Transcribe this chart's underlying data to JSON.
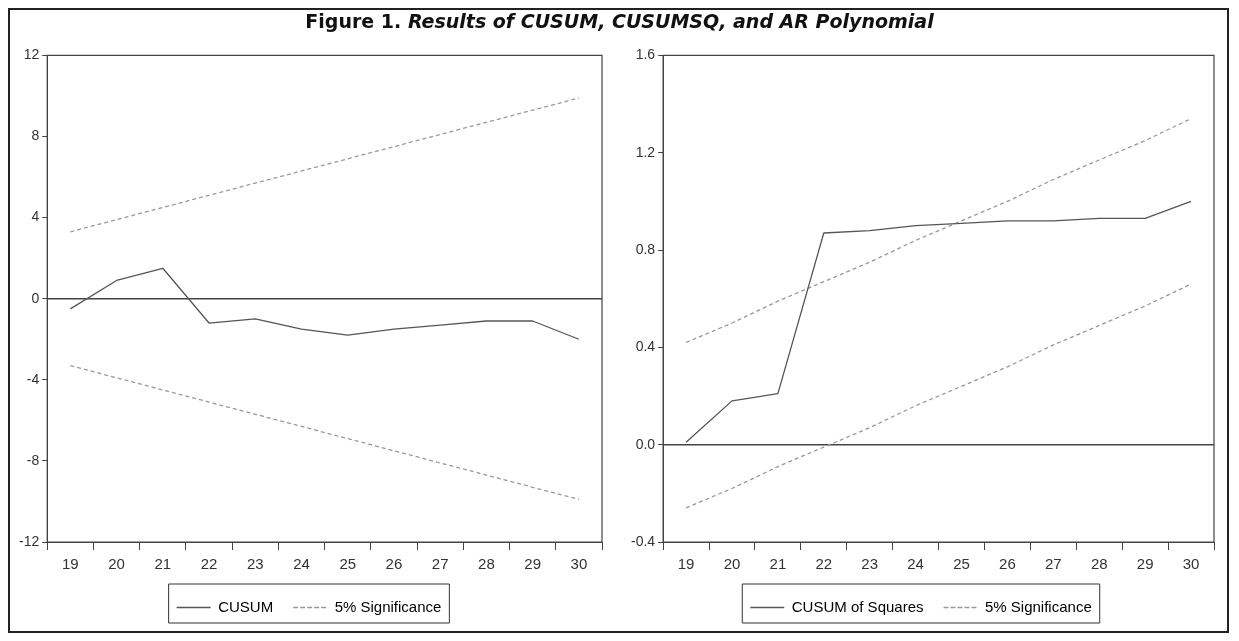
{
  "chart_data": [
    {
      "type": "line",
      "title": "Figure 1. Results of CUSUM, CUSUMSQ, and AR Polynomial",
      "categories": [
        "19",
        "20",
        "21",
        "22",
        "23",
        "24",
        "25",
        "26",
        "27",
        "28",
        "29",
        "30"
      ],
      "series": [
        {
          "name": "CUSUM",
          "color": "#555555",
          "values": [
            -0.5,
            0.9,
            1.5,
            -1.2,
            -1.0,
            -1.5,
            -1.8,
            -1.5,
            -1.3,
            -1.1,
            -1.1,
            -2.0
          ]
        },
        {
          "name": "5% Significance",
          "color": "#999999",
          "line_style": "dashed",
          "values": [
            3.3,
            3.9,
            4.5,
            5.1,
            5.7,
            6.3,
            6.9,
            7.5,
            8.1,
            8.7,
            9.3,
            9.9
          ]
        },
        {
          "color": "#999999",
          "line_style": "dashed",
          "values": [
            -3.3,
            -3.9,
            -4.5,
            -5.1,
            -5.7,
            -6.3,
            -6.9,
            -7.5,
            -8.1,
            -8.7,
            -9.3,
            -9.9
          ]
        }
      ],
      "ylim": [
        -12,
        12
      ],
      "yticks": [
        -12,
        -8,
        -4,
        0,
        4,
        8,
        12
      ],
      "ref_lines": [
        {
          "axis": "y",
          "value": 0,
          "color": "#444444"
        }
      ],
      "legend": "bottom",
      "marker": "none",
      "grid": false
    },
    {
      "type": "line",
      "categories": [
        "19",
        "20",
        "21",
        "22",
        "23",
        "24",
        "25",
        "26",
        "27",
        "28",
        "29",
        "30"
      ],
      "series": [
        {
          "name": "CUSUM of Squares",
          "color": "#555555",
          "values": [
            0.01,
            0.18,
            0.21,
            0.87,
            0.88,
            0.9,
            0.91,
            0.92,
            0.92,
            0.93,
            0.93,
            1.0
          ]
        },
        {
          "name": "5% Significance",
          "color": "#999999",
          "line_style": "dashed",
          "values": [
            0.42,
            0.5,
            0.59,
            0.67,
            0.75,
            0.84,
            0.92,
            1.0,
            1.09,
            1.17,
            1.25,
            1.34
          ]
        },
        {
          "color": "#999999",
          "line_style": "dashed",
          "values": [
            -0.26,
            -0.18,
            -0.09,
            -0.01,
            0.07,
            0.16,
            0.24,
            0.32,
            0.41,
            0.49,
            0.57,
            0.66
          ]
        }
      ],
      "ylim": [
        -0.4,
        1.6
      ],
      "yticks": [
        -0.4,
        {
          "value": 0,
          "label": "0.0"
        },
        0.4,
        0.8,
        1.2,
        1.6
      ],
      "ref_lines": [
        {
          "axis": "y",
          "value": 0,
          "color": "#444444"
        }
      ],
      "legend": "bottom",
      "marker": "none",
      "grid": false
    }
  ]
}
